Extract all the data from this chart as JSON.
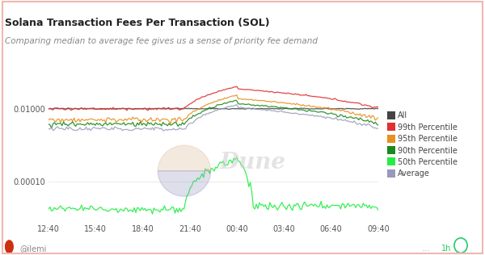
{
  "title": "Solana Transaction Fees Per Transaction (SOL)",
  "subtitle": "Comparing median to average fee gives us a sense of priority fee demand",
  "x_labels": [
    "12:40",
    "15:40",
    "18:40",
    "21:40",
    "00:40",
    "03:40",
    "06:40",
    "09:40"
  ],
  "bg_color": "#ffffff",
  "plot_bg_color": "#ffffff",
  "border_color": "#f0b8b0",
  "colors": {
    "all": "#444444",
    "p99": "#e03030",
    "p95": "#e89020",
    "p90": "#1a8a1a",
    "p50": "#22ee44",
    "avg": "#9999bb"
  },
  "legend_labels": [
    "All",
    "99th Percentile",
    "95th Percentile",
    "90th Percentile",
    "50th Percentile",
    "Average"
  ],
  "watermark_text": "Dune",
  "footer_text": "@ilemi",
  "footer_right": "1h"
}
